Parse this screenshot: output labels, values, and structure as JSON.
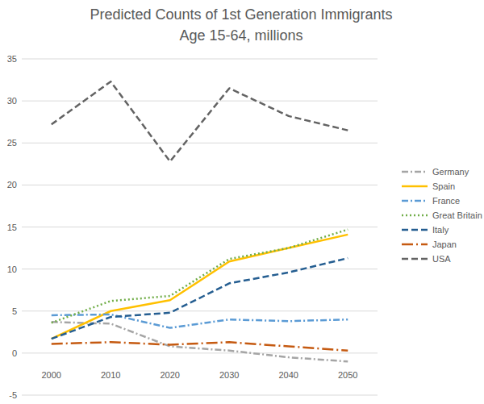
{
  "chart_data": {
    "type": "line",
    "title": "Predicted Counts of 1st Generation Immigrants",
    "subtitle": "Age 15-64, millions",
    "categories": [
      "2000",
      "2010",
      "2020",
      "2030",
      "2040",
      "2050"
    ],
    "series": [
      {
        "name": "Germany",
        "color": "#a5a5a5",
        "line_style": "dash_dot",
        "values": [
          3.7,
          3.5,
          0.8,
          0.3,
          -0.5,
          -1.0
        ]
      },
      {
        "name": "Spain",
        "color": "#ffc000",
        "line_style": "solid",
        "values": [
          1.7,
          5.0,
          6.3,
          10.9,
          12.5,
          14.1
        ]
      },
      {
        "name": "France",
        "color": "#5b9bd5",
        "line_style": "dash_dot",
        "values": [
          4.5,
          4.6,
          3.0,
          4.0,
          3.8,
          4.0
        ]
      },
      {
        "name": "Great Britain",
        "color": "#70ad47",
        "line_style": "dotted",
        "values": [
          3.6,
          6.2,
          6.8,
          11.2,
          12.5,
          14.7
        ]
      },
      {
        "name": "Italy",
        "color": "#255e91",
        "line_style": "dashed",
        "values": [
          1.7,
          4.3,
          4.8,
          8.3,
          9.6,
          11.3
        ]
      },
      {
        "name": "Japan",
        "color": "#c55a11",
        "line_style": "long_dash_dot",
        "values": [
          1.1,
          1.3,
          1.0,
          1.3,
          0.8,
          0.3
        ]
      },
      {
        "name": "USA",
        "color": "#636363",
        "line_style": "dashed",
        "values": [
          27.2,
          32.3,
          22.8,
          31.5,
          28.2,
          26.5
        ]
      }
    ],
    "ylim": [
      -5,
      35
    ],
    "yticks": [
      -5,
      0,
      5,
      10,
      15,
      20,
      25,
      30,
      35
    ],
    "grid": true,
    "legend": "right"
  }
}
